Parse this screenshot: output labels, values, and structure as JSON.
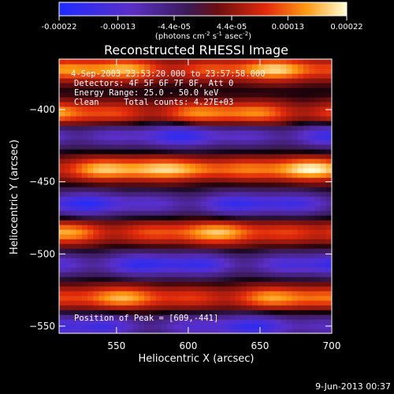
{
  "colorbar": {
    "ticks": [
      "-0.00022",
      "-0.00013",
      "-4.4e-05",
      "4.4e-05",
      "0.00013",
      "0.00022"
    ],
    "unit_label": "(photons cm",
    "unit_sup1": "-2",
    "unit_mid1": " s",
    "unit_sup2": "-1",
    "unit_mid2": " asec",
    "unit_sup3": "-2",
    "unit_end": ")"
  },
  "chart_data": {
    "type": "heatmap",
    "title": "Reconstructed RHESSI Image",
    "xlabel": "Heliocentric X (arcsec)",
    "ylabel": "Heliocentric Y (arcsec)",
    "xlim": [
      510,
      700
    ],
    "ylim": [
      -555,
      -365
    ],
    "x_ticks": [
      550,
      600,
      650,
      700
    ],
    "x_tick_labels": [
      "550",
      "600",
      "650",
      "700"
    ],
    "y_ticks": [
      -400,
      -450,
      -500,
      -550
    ],
    "y_tick_labels": [
      "−400",
      "−450",
      "−500",
      "−550"
    ],
    "colormap": "blue-purple-red-yellow-white",
    "value_range": [
      -0.00022,
      0.00022
    ],
    "bands": [
      {
        "y": -372,
        "amp": 0.00018
      },
      {
        "y": -402,
        "amp": 0.00016
      },
      {
        "y": -418,
        "amp": -0.00017
      },
      {
        "y": -441,
        "amp": 0.0002
      },
      {
        "y": -465,
        "amp": -0.00018
      },
      {
        "y": -485,
        "amp": 0.00017
      },
      {
        "y": -507,
        "amp": -0.00019
      },
      {
        "y": -530,
        "amp": 0.00016
      },
      {
        "y": -550,
        "amp": -0.00017
      }
    ],
    "peak": [
      609,
      -441
    ],
    "annotations": [
      "4-Sep-2003 23:53:20.000 to 23:57:58.000",
      "Detectors: 4F 5F 6F 7F 8F, Att 0",
      "Energy Range: 25.0 - 50.0 keV",
      "Clean     Total counts: 4.27E+03"
    ],
    "peak_label": "Position of Peak = [609,-441]"
  },
  "footer": {
    "date": "9-Jun-2013 00:37"
  }
}
